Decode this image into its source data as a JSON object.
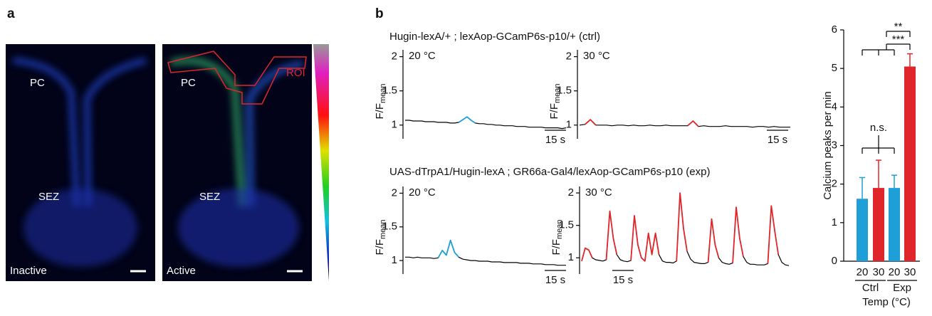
{
  "panel_labels": {
    "a": "a",
    "b": "b"
  },
  "images": [
    {
      "regions": [
        "PC",
        "SEZ"
      ],
      "state": "Inactive"
    },
    {
      "regions": [
        "PC",
        "SEZ"
      ],
      "state": "Active",
      "roi": "ROI"
    }
  ],
  "genotypes": [
    "Hugin-lexA/+ ; lexAop-GCamP6s-p10/+ (ctrl)",
    "UAS-dTrpA1/Hugin-lexA ; GR66a-Gal4/lexAop-GCamP6s-p10 (exp)"
  ],
  "chart_data": [
    {
      "type": "line",
      "annotation": "20 °C",
      "ylabel": "F/F",
      "ylabel_sub": "mean",
      "scale_bar": "15 s",
      "ylim": [
        0.8,
        2.1
      ],
      "yticks": [
        1,
        1.5,
        2
      ],
      "series": [
        {
          "color": "#000000",
          "values": [
            1.07,
            1.07,
            1.06,
            1.06,
            1.06,
            1.05,
            1.05,
            1.05,
            1.04,
            1.04,
            1.04,
            1.03,
            1.03,
            1.04,
            1.08,
            1.12,
            1.07,
            1.03,
            1.02,
            1.02,
            1.01,
            1.01,
            1.0,
            1.0,
            0.99,
            0.99,
            0.99,
            0.98,
            0.98,
            0.98,
            0.97,
            0.97,
            0.97,
            0.97,
            0.96,
            0.96,
            0.96,
            0.96,
            0.95,
            0.96
          ]
        },
        {
          "color": "#1e9fd8",
          "values": [
            null,
            null,
            null,
            null,
            null,
            null,
            null,
            null,
            null,
            null,
            null,
            null,
            null,
            1.04,
            1.08,
            1.12,
            1.07,
            1.03,
            null,
            null,
            null,
            null,
            null,
            null,
            null,
            null,
            null,
            null,
            null,
            null,
            null,
            null,
            null,
            null,
            null,
            null,
            null,
            null,
            null,
            null
          ]
        }
      ]
    },
    {
      "type": "line",
      "annotation": "30 °C",
      "ylabel": "F/F",
      "ylabel_sub": "mean",
      "scale_bar": "15 s",
      "ylim": [
        0.8,
        2.1
      ],
      "yticks": [
        1,
        1.5,
        2
      ],
      "series": [
        {
          "color": "#000000",
          "values": [
            1.0,
            1.01,
            1.08,
            1.0,
            1.0,
            1.0,
            0.99,
            1.0,
            1.0,
            0.99,
            1.0,
            0.99,
            0.99,
            1.0,
            0.99,
            0.99,
            1.0,
            0.99,
            0.99,
            0.99,
            0.99,
            1.06,
            0.98,
            0.99,
            0.98,
            0.98,
            0.98,
            0.99,
            0.98,
            0.98,
            0.98,
            0.98,
            0.97,
            0.98,
            0.98,
            0.97,
            0.98,
            0.97,
            0.97,
            0.97
          ]
        },
        {
          "color": "#e0252b",
          "values": [
            null,
            1.01,
            1.08,
            1.0,
            null,
            null,
            null,
            null,
            null,
            null,
            null,
            null,
            null,
            null,
            null,
            null,
            null,
            null,
            null,
            null,
            0.99,
            1.06,
            0.98,
            null,
            null,
            null,
            null,
            null,
            null,
            null,
            null,
            null,
            null,
            null,
            null,
            null,
            null,
            null,
            null,
            null
          ]
        }
      ]
    },
    {
      "type": "line",
      "annotation": "20 °C",
      "ylabel": "F/F",
      "ylabel_sub": "mean",
      "scale_bar": "15 s",
      "ylim": [
        0.8,
        2.1
      ],
      "yticks": [
        1,
        1.5,
        2
      ],
      "series": [
        {
          "color": "#000000",
          "values": [
            1.05,
            1.05,
            1.04,
            1.05,
            1.04,
            1.04,
            1.04,
            1.03,
            1.04,
            1.15,
            1.08,
            1.3,
            1.12,
            1.05,
            1.02,
            1.01,
            1.0,
            1.0,
            0.99,
            0.99,
            0.99,
            0.98,
            0.98,
            0.98,
            0.97,
            0.97,
            0.97,
            0.97,
            0.96,
            0.96,
            0.96,
            0.95,
            0.95,
            0.95,
            0.94,
            0.94,
            0.94,
            0.93,
            0.93,
            0.93
          ]
        },
        {
          "color": "#1e9fd8",
          "values": [
            null,
            null,
            null,
            null,
            null,
            null,
            null,
            null,
            1.04,
            1.15,
            1.08,
            1.3,
            1.12,
            1.05,
            null,
            null,
            null,
            null,
            null,
            null,
            null,
            null,
            null,
            null,
            null,
            null,
            null,
            null,
            null,
            null,
            null,
            null,
            null,
            null,
            null,
            null,
            null,
            null,
            null,
            null
          ]
        }
      ]
    },
    {
      "type": "line",
      "annotation": "30 °C",
      "ylabel": "F/F",
      "ylabel_sub": "mean",
      "scale_bar": "15 s",
      "ylim": [
        0.75,
        2.1
      ],
      "yticks": [
        1,
        1.5,
        2
      ],
      "series": [
        {
          "color": "#000000",
          "values": [
            0.95,
            1.15,
            1.12,
            1.0,
            0.97,
            0.96,
            0.95,
            0.97,
            1.72,
            1.3,
            1.05,
            0.97,
            0.95,
            0.94,
            0.96,
            1.65,
            1.2,
            1.0,
            0.95,
            1.38,
            1.05,
            1.38,
            1.05,
            0.95,
            0.93,
            0.93,
            0.92,
            0.95,
            2.0,
            1.45,
            1.1,
            0.98,
            0.93,
            0.92,
            0.91,
            0.91,
            0.93,
            1.6,
            1.2,
            1.0,
            0.93,
            0.91,
            0.9,
            0.92,
            1.78,
            1.3,
            1.02,
            0.93,
            0.9,
            0.9,
            0.89,
            0.89,
            0.89,
            0.91,
            1.8,
            1.4,
            1.05,
            0.93,
            0.89,
            0.88
          ]
        },
        {
          "color": "#e0252b",
          "values": [
            0.95,
            1.15,
            1.12,
            1.0,
            null,
            null,
            null,
            0.97,
            1.72,
            1.3,
            1.05,
            null,
            null,
            null,
            0.96,
            1.65,
            1.2,
            1.0,
            0.95,
            1.38,
            1.05,
            1.38,
            1.05,
            null,
            null,
            null,
            null,
            0.95,
            2.0,
            1.45,
            1.1,
            null,
            null,
            null,
            null,
            null,
            0.93,
            1.6,
            1.2,
            1.0,
            null,
            null,
            null,
            0.92,
            1.78,
            1.3,
            1.02,
            null,
            null,
            null,
            null,
            null,
            null,
            0.91,
            1.8,
            1.4,
            1.05,
            null,
            null,
            null
          ]
        }
      ]
    },
    {
      "type": "bar",
      "ylabel": "Calcium peaks per min",
      "categories": [
        "20",
        "30",
        "20",
        "30"
      ],
      "groups": [
        "Ctrl",
        "Exp"
      ],
      "xlabel": "Temp (°C)",
      "values": [
        1.62,
        1.9,
        1.9,
        5.05
      ],
      "errors": [
        0.55,
        0.72,
        0.33,
        0.33
      ],
      "colors": [
        "#1e9fd8",
        "#e0252b",
        "#1e9fd8",
        "#e0252b"
      ],
      "ylim": [
        0,
        6
      ],
      "yticks": [
        0,
        1,
        2,
        3,
        4,
        5,
        6
      ],
      "annotations": [
        "n.s.",
        "**",
        "***"
      ]
    }
  ]
}
